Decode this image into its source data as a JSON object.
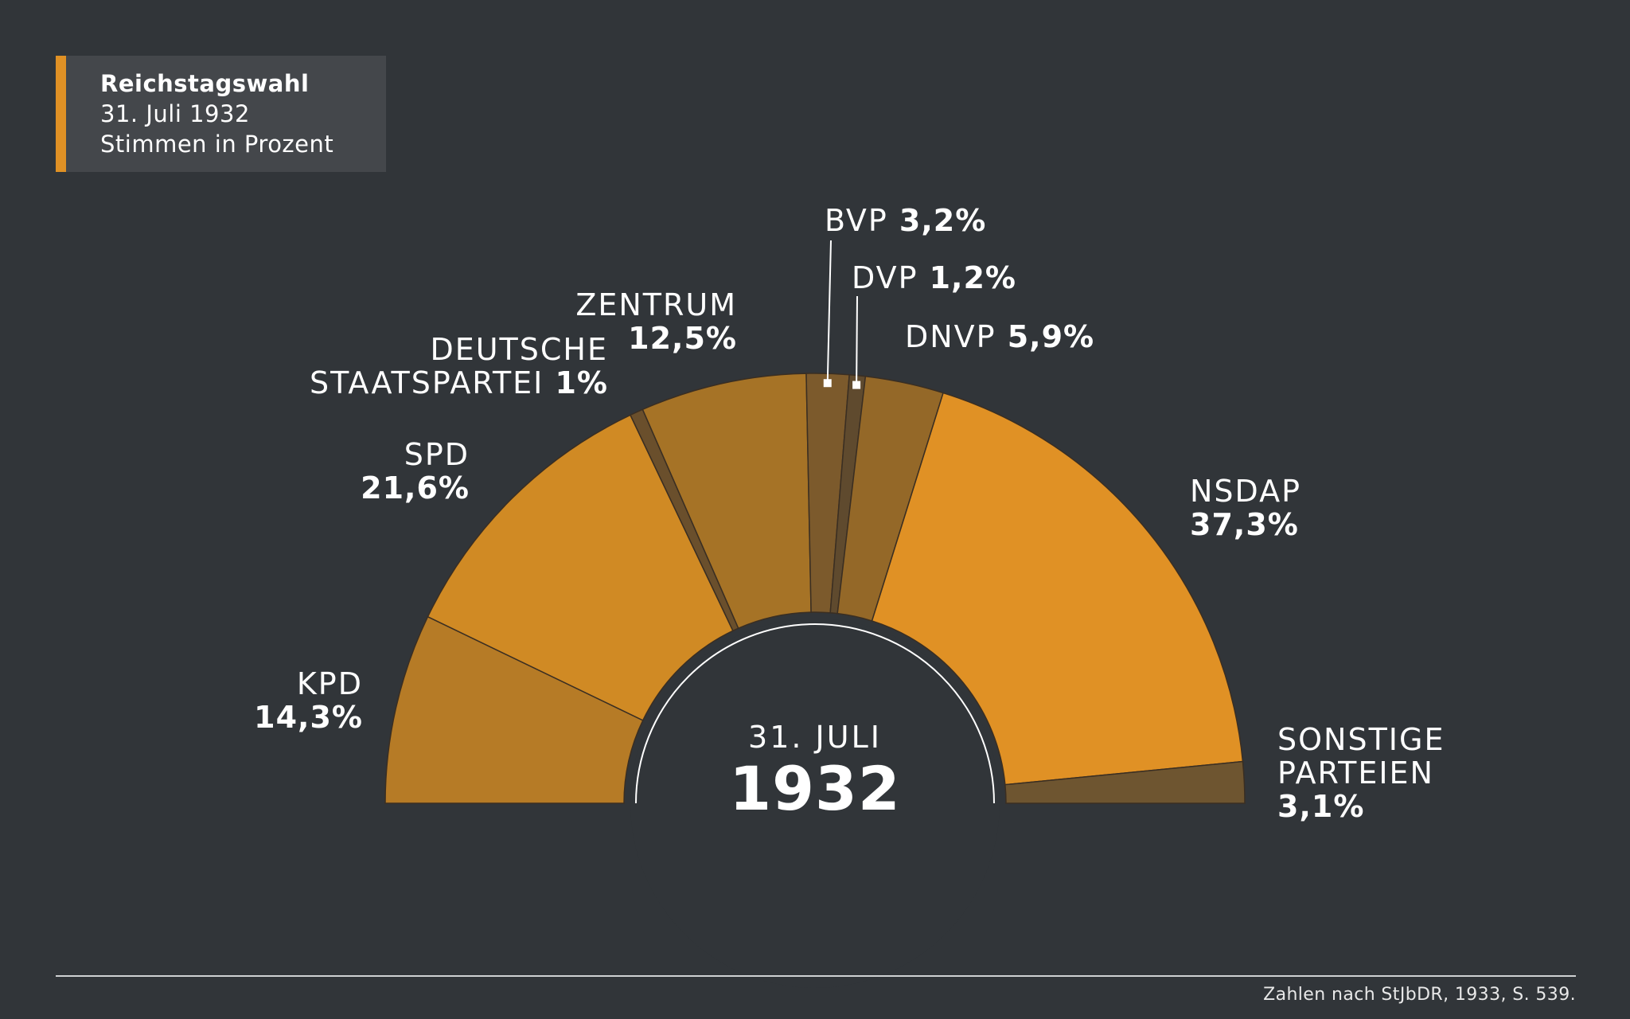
{
  "title": {
    "line1": "Reichstagswahl",
    "line2": "31. Juli 1932",
    "line3": "Stimmen in Prozent"
  },
  "center": {
    "date": "31. JULI",
    "year": "1932"
  },
  "colors": {
    "background": "#313539",
    "accent": "#e09125"
  },
  "chart_data": {
    "type": "pie",
    "variant": "semicircle",
    "series": [
      {
        "name": "KPD",
        "label_line1": "KPD",
        "value": 14.3,
        "display": "14,3%",
        "color": "#b67b26"
      },
      {
        "name": "SPD",
        "label_line1": "SPD",
        "value": 21.6,
        "display": "21,6%",
        "color": "#d08a24"
      },
      {
        "name": "DEUTSCHE STAATSPARTEI",
        "label_line1": "DEUTSCHE",
        "label_line2": "STAATSPARTEI",
        "value": 1.0,
        "display": "1%",
        "color": "#6a4f2c"
      },
      {
        "name": "ZENTRUM",
        "label_line1": "ZENTRUM",
        "value": 12.5,
        "display": "12,5%",
        "color": "#a67326"
      },
      {
        "name": "BVP",
        "label_line1": "BVP",
        "value": 3.2,
        "display": "3,2%",
        "color": "#7c5a2c"
      },
      {
        "name": "DVP",
        "label_line1": "DVP",
        "value": 1.2,
        "display": "1,2%",
        "color": "#5f4a2e"
      },
      {
        "name": "DNVP",
        "label_line1": "DNVP",
        "value": 5.9,
        "display": "5,9%",
        "color": "#946828"
      },
      {
        "name": "NSDAP",
        "label_line1": "NSDAP",
        "value": 37.3,
        "display": "37,3%",
        "color": "#e09125"
      },
      {
        "name": "SONSTIGE PARTEIEN",
        "label_line1": "SONSTIGE",
        "label_line2": "PARTEIEN",
        "value": 3.1,
        "display": "3,1%",
        "color": "#6e5530"
      }
    ]
  },
  "footer": {
    "source": "Zahlen nach StJbDR, 1933, S. 539."
  }
}
